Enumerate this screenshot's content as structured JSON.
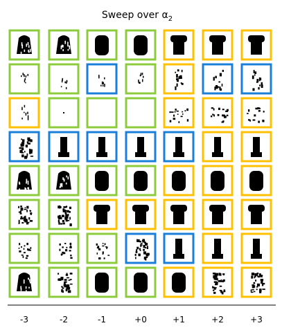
{
  "title": "Sweep over α₂",
  "title_base": "Sweep over α",
  "title_sub": "2",
  "x_ticks": [
    "-3",
    "-2",
    "-1",
    "+0",
    "+1",
    "+2",
    "+3"
  ],
  "colors": {
    "green": "#8ccc3c",
    "blue": "#1a7fd9",
    "orange": "#ffc000",
    "ink": "#000000",
    "background": "#ffffff"
  },
  "legend_note": "Frame colors: green, blue, orange (no legend text shown)",
  "grid": {
    "rows": 8,
    "cols": 7,
    "frame_colors": [
      [
        "green",
        "green",
        "green",
        "green",
        "orange",
        "orange",
        "orange"
      ],
      [
        "green",
        "green",
        "blue",
        "green",
        "orange",
        "blue",
        "blue"
      ],
      [
        "orange",
        "green",
        "green",
        "green",
        "orange",
        "orange",
        "orange"
      ],
      [
        "blue",
        "blue",
        "blue",
        "blue",
        "blue",
        "orange",
        "orange"
      ],
      [
        "green",
        "green",
        "green",
        "green",
        "orange",
        "orange",
        "orange"
      ],
      [
        "green",
        "green",
        "orange",
        "orange",
        "orange",
        "orange",
        "orange"
      ],
      [
        "green",
        "green",
        "green",
        "blue",
        "blue",
        "orange",
        "orange"
      ],
      [
        "green",
        "green",
        "green",
        "green",
        "orange",
        "orange",
        "orange"
      ]
    ],
    "glyph_types": [
      [
        "tree",
        "tree",
        "blob",
        "blob",
        "shirt",
        "shirt",
        "shirt"
      ],
      [
        "dots",
        "dots",
        "dots",
        "dots",
        "thin",
        "thin",
        "thin"
      ],
      [
        "dots",
        "tiny",
        "empty",
        "empty",
        "sparse",
        "sparse",
        "sparse"
      ],
      [
        "noisy",
        "column",
        "column",
        "column",
        "column",
        "column",
        "column"
      ],
      [
        "tree",
        "tree",
        "blob",
        "blob",
        "blob",
        "blob",
        "blob"
      ],
      [
        "noisy",
        "noisy",
        "shirt",
        "shirt",
        "shirt",
        "shirt",
        "shirt"
      ],
      [
        "speck",
        "speck",
        "speck",
        "noisy",
        "column",
        "column",
        "column"
      ],
      [
        "tree",
        "noisy",
        "blob",
        "blob",
        "blob",
        "noisy",
        "noisy"
      ]
    ]
  }
}
